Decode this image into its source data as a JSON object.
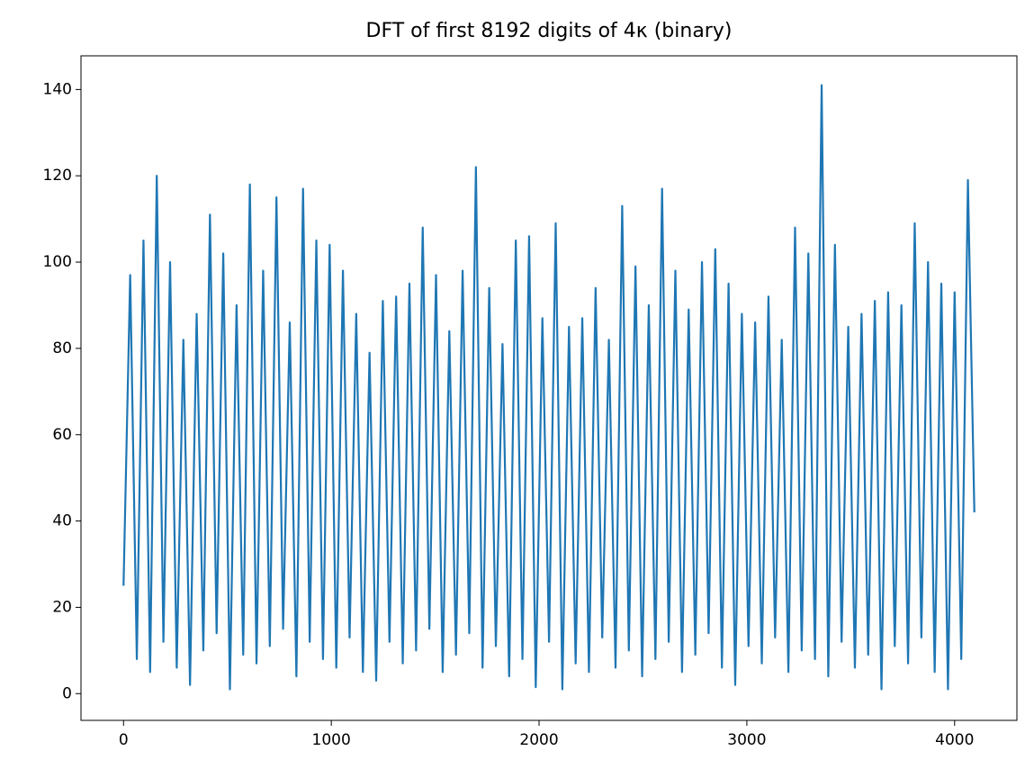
{
  "chart_data": {
    "type": "line",
    "title": "DFT of first 8192 digits of 4κ (binary)",
    "x": [
      0,
      32,
      64,
      96,
      128,
      160,
      192,
      224,
      256,
      288,
      320,
      352,
      384,
      416,
      448,
      480,
      512,
      544,
      576,
      608,
      640,
      672,
      704,
      736,
      768,
      800,
      832,
      864,
      896,
      928,
      960,
      992,
      1024,
      1056,
      1088,
      1120,
      1152,
      1184,
      1216,
      1248,
      1280,
      1312,
      1344,
      1376,
      1408,
      1440,
      1472,
      1504,
      1536,
      1568,
      1600,
      1632,
      1664,
      1696,
      1728,
      1760,
      1792,
      1824,
      1856,
      1888,
      1920,
      1952,
      1984,
      2016,
      2048,
      2080,
      2112,
      2144,
      2176,
      2208,
      2240,
      2272,
      2304,
      2336,
      2368,
      2400,
      2432,
      2464,
      2496,
      2528,
      2560,
      2592,
      2624,
      2656,
      2688,
      2720,
      2752,
      2784,
      2816,
      2848,
      2880,
      2912,
      2944,
      2976,
      3008,
      3040,
      3072,
      3104,
      3136,
      3168,
      3200,
      3232,
      3264,
      3296,
      3328,
      3360,
      3392,
      3424,
      3456,
      3488,
      3520,
      3552,
      3584,
      3616,
      3648,
      3680,
      3712,
      3744,
      3776,
      3808,
      3840,
      3872,
      3904,
      3936,
      3968,
      4000,
      4032,
      4064,
      4095
    ],
    "series": [
      {
        "color": "#1f77b4",
        "values": [
          25,
          97,
          8,
          105,
          5,
          120,
          12,
          100,
          6,
          82,
          2,
          88,
          10,
          111,
          14,
          102,
          1,
          90,
          9,
          118,
          7,
          98,
          11,
          115,
          15,
          86,
          4,
          117,
          12,
          105,
          8,
          104,
          6,
          98,
          13,
          88,
          5,
          79,
          3,
          91,
          12,
          92,
          7,
          95,
          10,
          108,
          15,
          97,
          5,
          84,
          9,
          98,
          14,
          122,
          6,
          94,
          11,
          81,
          4,
          105,
          8,
          106,
          1.5,
          87,
          12,
          109,
          1,
          85,
          7,
          87,
          5,
          94,
          13,
          82,
          6,
          113,
          10,
          99,
          4,
          90,
          8,
          117,
          12,
          98,
          5,
          89,
          9,
          100,
          14,
          103,
          6,
          95,
          2,
          88,
          11,
          86,
          7,
          92,
          13,
          82,
          5,
          108,
          10,
          102,
          8,
          141,
          4,
          104,
          12,
          85,
          6,
          88,
          9,
          91,
          1,
          93,
          11,
          90,
          7,
          109,
          13,
          100,
          5,
          95,
          1,
          93,
          8,
          119,
          42
        ]
      }
    ],
    "xlim": [
      -204.75,
      4299.75
    ],
    "ylim": [
      -6.2,
      147.8
    ],
    "xticks": [
      0,
      1000,
      2000,
      3000,
      4000
    ],
    "yticks": [
      0,
      20,
      40,
      60,
      80,
      100,
      120,
      140
    ]
  }
}
